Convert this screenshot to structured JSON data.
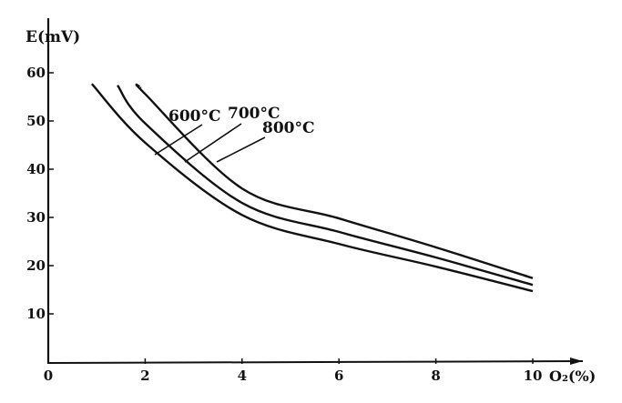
{
  "chart_data": {
    "type": "line",
    "title": "",
    "xlabel": "O₂(%)",
    "ylabel": "E(mV)",
    "xlim": [
      0,
      10
    ],
    "ylim": [
      0,
      65
    ],
    "xticks": [
      "0",
      "2",
      "4",
      "6",
      "8",
      "10"
    ],
    "yticks": [
      "10",
      "20",
      "30",
      "40",
      "50",
      "60"
    ],
    "grid": false,
    "series": [
      {
        "name": "600°C",
        "points": [
          [
            0.9,
            57.7
          ],
          [
            2,
            45.5
          ],
          [
            4,
            30.5
          ],
          [
            6,
            24.5
          ],
          [
            8,
            19.8
          ],
          [
            10,
            14.7
          ]
        ]
      },
      {
        "name": "700°C",
        "points": [
          [
            1.43,
            57.4
          ],
          [
            2,
            49.5
          ],
          [
            4,
            33
          ],
          [
            6,
            27
          ],
          [
            8,
            21.7
          ],
          [
            10,
            16
          ]
        ]
      },
      {
        "name": "800°C",
        "points": [
          [
            1.9,
            57
          ],
          [
            2,
            55.6
          ],
          [
            4,
            36
          ],
          [
            6,
            29.8
          ],
          [
            8,
            23.8
          ],
          [
            10,
            17.4
          ]
        ]
      }
    ],
    "line_color": "#111111"
  }
}
